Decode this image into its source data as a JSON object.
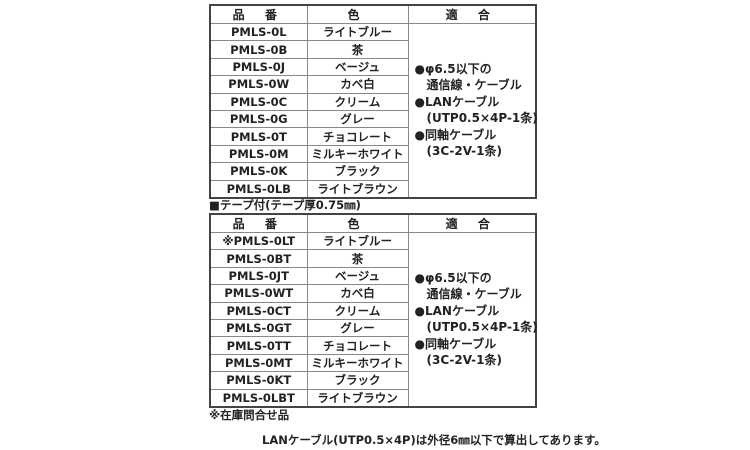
{
  "table1": {
    "headers": [
      "品 番",
      "色",
      "適 合"
    ],
    "rows": [
      {
        "code": "PMLS-0L",
        "color": "ライトブルー"
      },
      {
        "code": "PMLS-0B",
        "color": "茶"
      },
      {
        "code": "PMLS-0J",
        "color": "ベージュ"
      },
      {
        "code": "PMLS-0W",
        "color": "カベ白"
      },
      {
        "code": "PMLS-0C",
        "color": "クリーム"
      },
      {
        "code": "PMLS-0G",
        "color": "グレー"
      },
      {
        "code": "PMLS-0T",
        "color": "チョコレート"
      },
      {
        "code": "PMLS-0M",
        "color": "ミルキーホワイト"
      },
      {
        "code": "PMLS-0K",
        "color": "ブラック"
      },
      {
        "code": "PMLS-0LB",
        "color": "ライトブラウン"
      }
    ],
    "fit": [
      "●φ6.5以下の",
      "　通信線・ケーブル",
      "●LANケーブル",
      "　(UTP0.5×4P-1条)",
      "●同軸ケーブル",
      "　(3C-2V-1条)"
    ]
  },
  "caption": "■テープ付(テープ厚0.75㎜)",
  "table2": {
    "headers": [
      "品 番",
      "色",
      "適 合"
    ],
    "rows": [
      {
        "code": "※PMLS-0LT",
        "color": "ライトブルー"
      },
      {
        "code": "PMLS-0BT",
        "color": "茶"
      },
      {
        "code": "PMLS-0JT",
        "color": "ベージュ"
      },
      {
        "code": "PMLS-0WT",
        "color": "カベ白"
      },
      {
        "code": "PMLS-0CT",
        "color": "クリーム"
      },
      {
        "code": "PMLS-0GT",
        "color": "グレー"
      },
      {
        "code": "PMLS-0TT",
        "color": "チョコレート"
      },
      {
        "code": "PMLS-0MT",
        "color": "ミルキーホワイト"
      },
      {
        "code": "PMLS-0KT",
        "color": "ブラック"
      },
      {
        "code": "PMLS-0LBT",
        "color": "ライトブラウン"
      }
    ],
    "fit": [
      "●φ6.5以下の",
      "　通信線・ケーブル",
      "●LANケーブル",
      "　(UTP0.5×4P-1条)",
      "●同軸ケーブル",
      "　(3C-2V-1条)"
    ]
  },
  "footnote": "※在庫問合せ品",
  "note": "LANケーブル(UTP0.5×4P)は外径6㎜以下で算出してあります。"
}
